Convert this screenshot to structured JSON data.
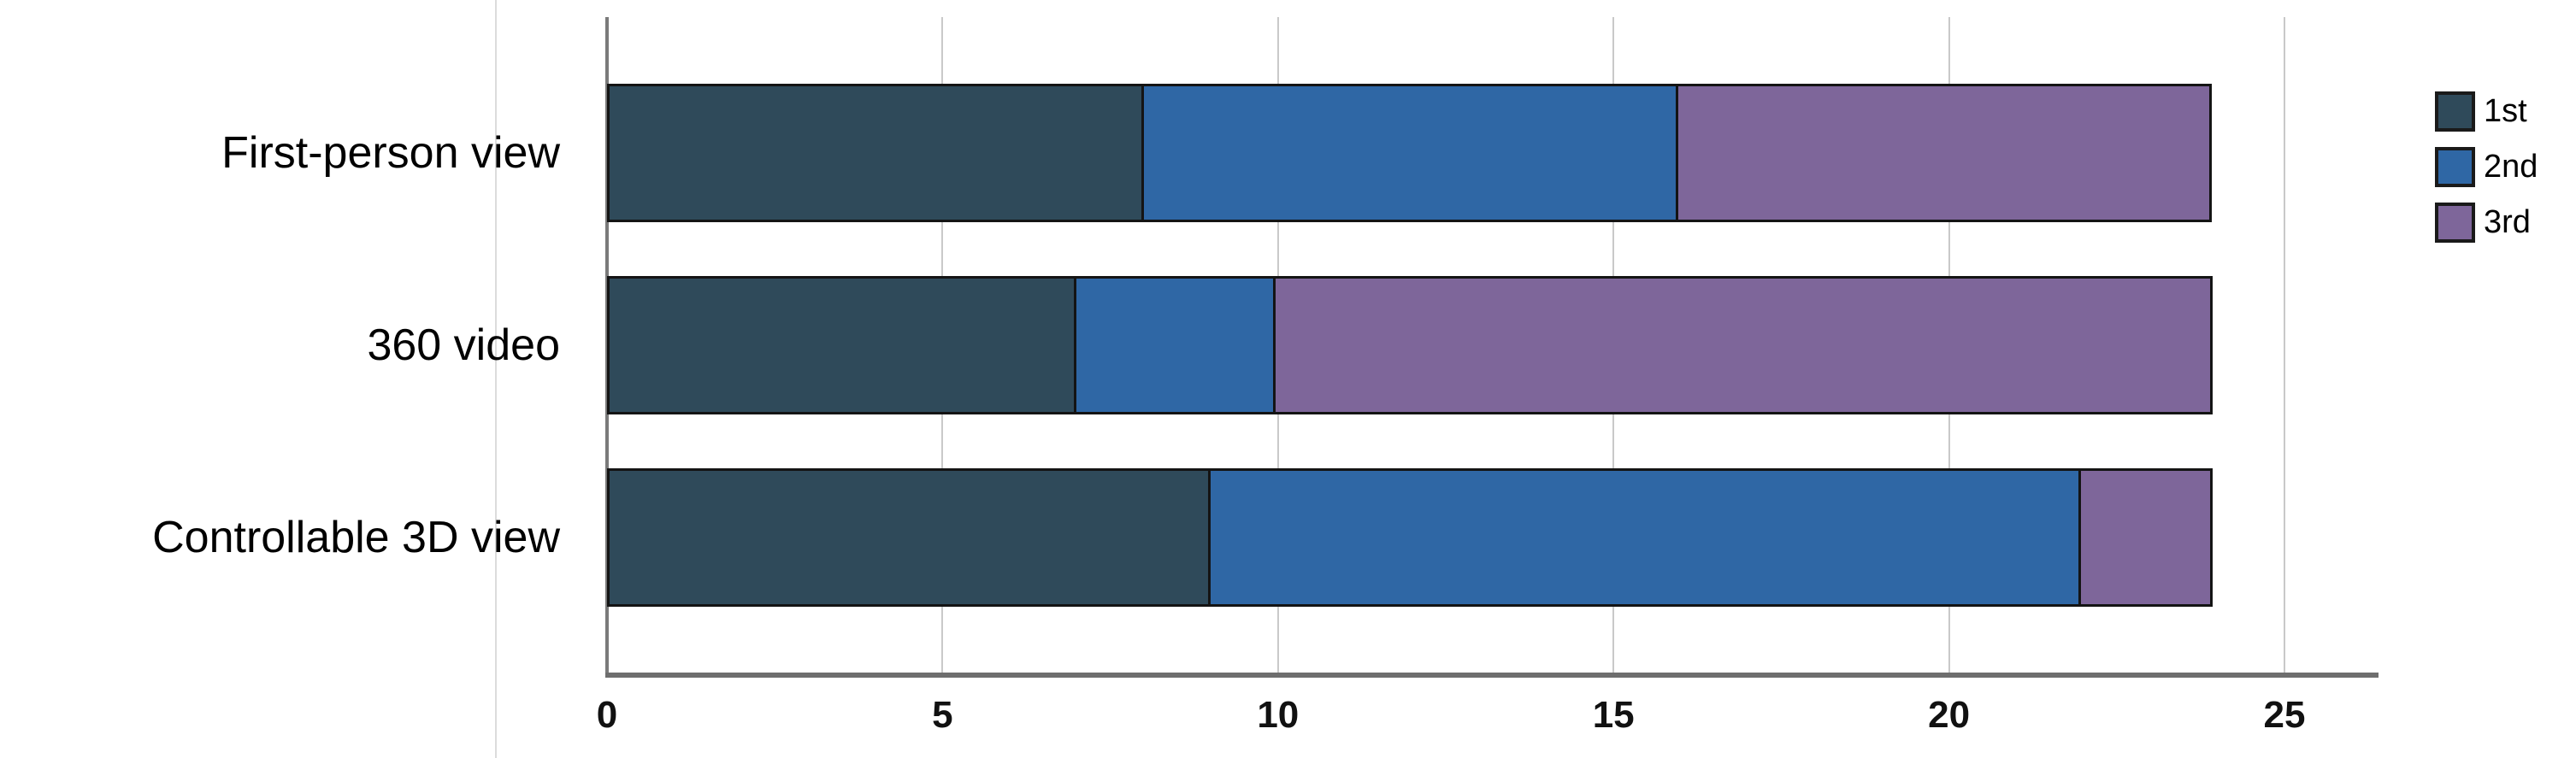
{
  "chart_data": {
    "type": "bar",
    "orientation": "horizontal",
    "stacked": true,
    "title": "",
    "xlabel": "",
    "ylabel": "",
    "categories": [
      "First-person view",
      "360 video",
      "Controllable 3D view"
    ],
    "series": [
      {
        "name": "1st",
        "color": "#2F4A5A",
        "values": [
          8,
          7,
          9
        ]
      },
      {
        "name": "2nd",
        "color": "#2F67A5",
        "values": [
          8,
          3,
          13
        ]
      },
      {
        "name": "3rd",
        "color": "#7E669A",
        "values": [
          8,
          14,
          2
        ]
      }
    ],
    "bar_totals": [
      24,
      24,
      24
    ],
    "x_ticks": [
      "0",
      "5",
      "10",
      "15",
      "20",
      "25"
    ],
    "x_tick_values": [
      0,
      5,
      10,
      15,
      20,
      25
    ],
    "xlim": [
      0,
      25
    ],
    "grid": "vertical",
    "legend_position": "right",
    "axis_color": "#6e6e6e",
    "gridline_color": "#c9c9c9",
    "bar_border_color": "#141414"
  }
}
